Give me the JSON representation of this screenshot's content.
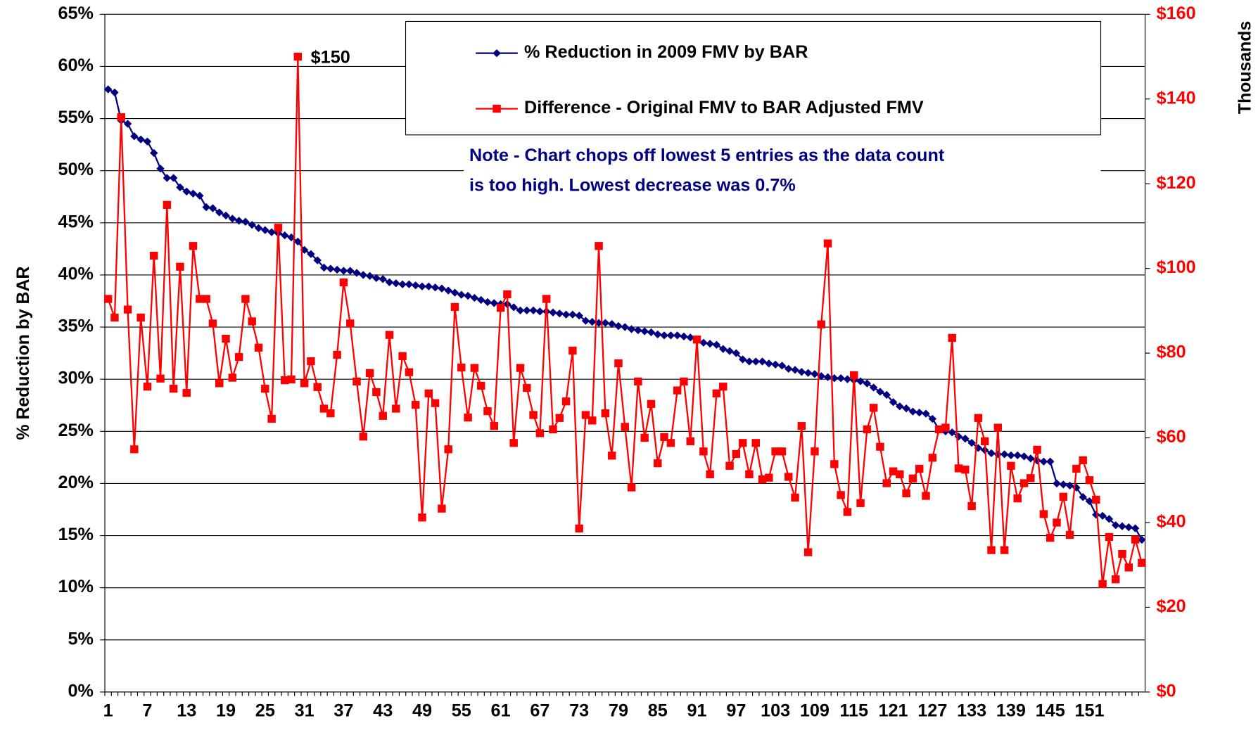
{
  "chart_data": {
    "type": "line",
    "y_axis_label": "% Reduction by BAR",
    "y2_axis_label": "Thousands",
    "annotation": {
      "text": "$150",
      "index": 29
    },
    "note": [
      "Note - Chart chops off lowest 5 entries as the data count",
      "is too high.  Lowest decrease was 0.7%"
    ],
    "grid": true,
    "ylim": [
      0,
      65
    ],
    "yticks": [
      {
        "value": 0,
        "label": "0%"
      },
      {
        "value": 5,
        "label": "5%"
      },
      {
        "value": 10,
        "label": "10%"
      },
      {
        "value": 15,
        "label": "15%"
      },
      {
        "value": 20,
        "label": "20%"
      },
      {
        "value": 25,
        "label": "25%"
      },
      {
        "value": 30,
        "label": "30%"
      },
      {
        "value": 35,
        "label": "35%"
      },
      {
        "value": 40,
        "label": "40%"
      },
      {
        "value": 45,
        "label": "45%"
      },
      {
        "value": 50,
        "label": "50%"
      },
      {
        "value": 55,
        "label": "55%"
      },
      {
        "value": 60,
        "label": "60%"
      },
      {
        "value": 65,
        "label": "65%"
      }
    ],
    "y2lim": [
      0,
      160
    ],
    "y2ticks": [
      {
        "value": 0,
        "label": "$0"
      },
      {
        "value": 20,
        "label": "$20"
      },
      {
        "value": 40,
        "label": "$40"
      },
      {
        "value": 60,
        "label": "$60"
      },
      {
        "value": 80,
        "label": "$80"
      },
      {
        "value": 100,
        "label": "$100"
      },
      {
        "value": 120,
        "label": "$120"
      },
      {
        "value": 140,
        "label": "$140"
      },
      {
        "value": 160,
        "label": "$160"
      }
    ],
    "categories": [
      "1",
      null,
      null,
      null,
      null,
      null,
      "7",
      null,
      null,
      null,
      null,
      null,
      "13",
      null,
      null,
      null,
      null,
      null,
      "19",
      null,
      null,
      null,
      null,
      null,
      "25",
      null,
      null,
      null,
      null,
      null,
      "31",
      null,
      null,
      null,
      null,
      null,
      "37",
      null,
      null,
      null,
      null,
      null,
      "43",
      null,
      null,
      null,
      null,
      null,
      "49",
      null,
      null,
      null,
      null,
      null,
      "55",
      null,
      null,
      null,
      null,
      null,
      "61",
      null,
      null,
      null,
      null,
      null,
      "67",
      null,
      null,
      null,
      null,
      null,
      "73",
      null,
      null,
      null,
      null,
      null,
      "79",
      null,
      null,
      null,
      null,
      null,
      "85",
      null,
      null,
      null,
      null,
      null,
      "91",
      null,
      null,
      null,
      null,
      null,
      "97",
      null,
      null,
      null,
      null,
      null,
      "103",
      null,
      null,
      null,
      null,
      null,
      "109",
      null,
      null,
      null,
      null,
      null,
      "115",
      null,
      null,
      null,
      null,
      null,
      "121",
      null,
      null,
      null,
      null,
      null,
      "127",
      null,
      null,
      null,
      null,
      null,
      "133",
      null,
      null,
      null,
      null,
      null,
      "139",
      null,
      null,
      null,
      null,
      null,
      "145",
      null,
      null,
      null,
      null,
      null,
      "151",
      null,
      null,
      null,
      null,
      null,
      null,
      null,
      null
    ],
    "series": [
      {
        "name": "% Reduction in 2009 FMV by BAR",
        "color": "#000080",
        "marker": "diamond",
        "values": [
          57.8,
          57.5,
          54.8,
          54.5,
          53.3,
          53.0,
          52.8,
          51.7,
          50.2,
          49.3,
          49.3,
          48.4,
          48.0,
          47.8,
          47.6,
          46.5,
          46.4,
          46.0,
          45.7,
          45.4,
          45.2,
          45.1,
          44.8,
          44.5,
          44.3,
          44.1,
          44.0,
          43.8,
          43.6,
          43.2,
          42.4,
          42.0,
          41.4,
          40.7,
          40.6,
          40.5,
          40.4,
          40.4,
          40.2,
          40.0,
          39.9,
          39.7,
          39.6,
          39.3,
          39.2,
          39.1,
          39.1,
          39.0,
          38.9,
          38.9,
          38.8,
          38.7,
          38.5,
          38.3,
          38.1,
          38.0,
          37.8,
          37.6,
          37.4,
          37.3,
          37.2,
          37.2,
          36.9,
          36.6,
          36.6,
          36.6,
          36.5,
          36.5,
          36.4,
          36.3,
          36.2,
          36.2,
          36.1,
          35.6,
          35.5,
          35.4,
          35.4,
          35.3,
          35.1,
          35.0,
          34.8,
          34.7,
          34.6,
          34.5,
          34.3,
          34.2,
          34.2,
          34.2,
          34.1,
          34.0,
          33.7,
          33.5,
          33.4,
          33.3,
          32.9,
          32.7,
          32.5,
          31.9,
          31.7,
          31.7,
          31.7,
          31.5,
          31.4,
          31.3,
          31.0,
          30.9,
          30.7,
          30.6,
          30.5,
          30.3,
          30.2,
          30.1,
          30.1,
          30.0,
          29.9,
          29.8,
          29.6,
          29.2,
          28.8,
          28.5,
          27.8,
          27.4,
          27.2,
          26.9,
          26.8,
          26.7,
          26.2,
          25.2,
          25.0,
          24.9,
          24.5,
          24.3,
          23.9,
          23.4,
          23.2,
          22.9,
          22.8,
          22.8,
          22.7,
          22.7,
          22.6,
          22.4,
          22.2,
          22.1,
          22.1,
          20.0,
          19.9,
          19.8,
          19.6,
          18.7,
          18.3,
          17.0,
          16.9,
          16.6,
          16.0,
          15.9,
          15.8,
          15.7,
          14.6
        ]
      },
      {
        "name": "Difference - Original FMV to BAR Adjusted FMV",
        "color": "#ff0000",
        "marker": "square",
        "axis": "y2",
        "values": [
          92.8,
          88.4,
          135.7,
          90.3,
          57.3,
          88.4,
          72.1,
          103,
          74,
          115,
          71.6,
          100.4,
          70.6,
          105.3,
          92.8,
          92.8,
          87,
          72.9,
          83.4,
          74.2,
          79.1,
          92.8,
          87.5,
          81.3,
          71.6,
          64.5,
          109.6,
          73.6,
          73.8,
          150,
          72.9,
          78.1,
          72,
          66.9,
          65.8,
          79.6,
          96.7,
          87,
          73.3,
          60.3,
          75.3,
          70.8,
          65.2,
          84.3,
          66.9,
          79.3,
          75.5,
          67.8,
          41.2,
          70.5,
          68.2,
          43.3,
          57.3,
          90.9,
          76.6,
          64.8,
          76.5,
          72.3,
          66.3,
          62.8,
          90.7,
          93.9,
          58.8,
          76.5,
          71.8,
          65.4,
          61.1,
          92.8,
          62,
          64.7,
          68.6,
          80.6,
          38.6,
          65.4,
          64.1,
          105.3,
          65.8,
          55.8,
          77.6,
          62.6,
          48.3,
          73.3,
          60,
          68,
          54,
          60.2,
          58.8,
          71.2,
          73.3,
          59.2,
          83.2,
          56.8,
          51.4,
          70.5,
          72.1,
          53.4,
          56.2,
          58.8,
          51.4,
          58.8,
          50.2,
          50.6,
          56.8,
          56.8,
          50.8,
          45.9,
          62.8,
          33,
          56.8,
          86.8,
          105.9,
          53.8,
          46.5,
          42.5,
          74.8,
          44.6,
          62,
          67.1,
          57.9,
          49.3,
          52.1,
          51.4,
          46.9,
          50.4,
          52.7,
          46.3,
          55.3,
          62,
          62.4,
          83.6,
          52.8,
          52.5,
          43.9,
          64.7,
          59.2,
          33.5,
          62.4,
          33.5,
          53.4,
          45.7,
          49.3,
          50.5,
          57.2,
          42,
          36.4,
          40,
          46.1,
          37.1,
          52.7,
          54.7,
          50,
          45.4,
          25.5,
          36.6,
          26.6,
          32.6,
          29.4,
          36,
          30.5
        ]
      }
    ]
  }
}
